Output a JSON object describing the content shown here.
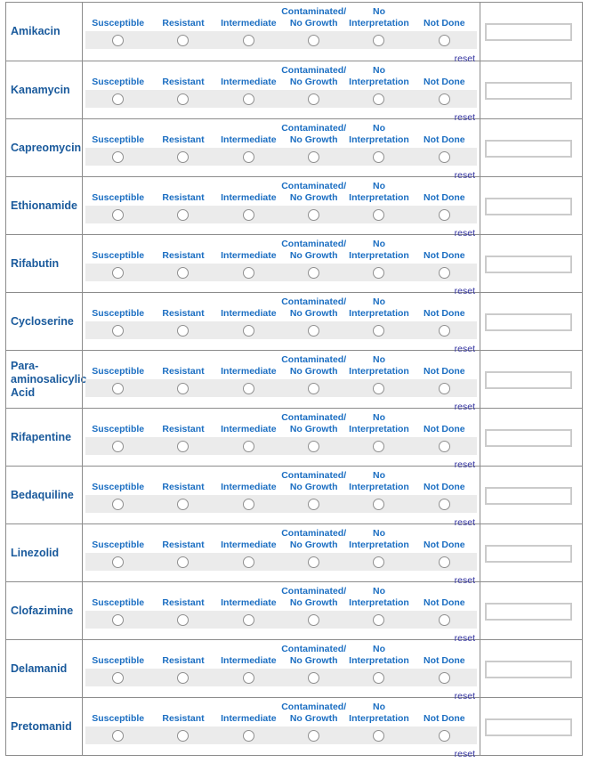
{
  "table": {
    "drugs": [
      "Amikacin",
      "Kanamycin",
      "Capreomycin",
      "Ethionamide",
      "Rifabutin",
      "Cycloserine",
      "Para-aminosalicylic Acid",
      "Rifapentine",
      "Bedaquiline",
      "Linezolid",
      "Clofazimine",
      "Delamanid",
      "Pretomanid"
    ],
    "options": [
      {
        "line1": "",
        "line2": "Susceptible"
      },
      {
        "line1": "",
        "line2": "Resistant"
      },
      {
        "line1": "",
        "line2": "Intermediate"
      },
      {
        "line1": "Contaminated/",
        "line2": "No Growth"
      },
      {
        "line1": "No",
        "line2": "Interpretation"
      },
      {
        "line1": "",
        "line2": "Not Done"
      }
    ],
    "reset_label": "reset",
    "input_value": ""
  },
  "colors": {
    "drug_name": "#1a5a9c",
    "option_header": "#1b6ec2",
    "reset_link": "#3333a0",
    "strip_background": "#ebebeb",
    "cell_border": "#8c8c8c"
  }
}
